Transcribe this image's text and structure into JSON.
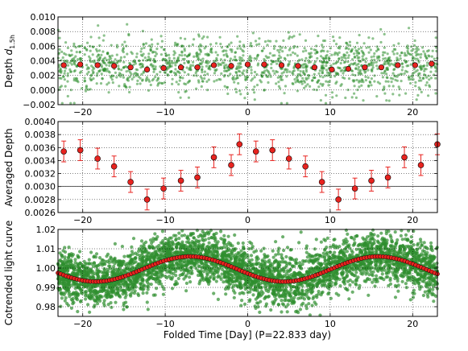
{
  "colors": {
    "scatter": "#2f8f2f",
    "binned": "#e8231f",
    "errorbar": "#e8231f",
    "marker_edge": "#000000",
    "grid": "#000000"
  },
  "chart_data": [
    {
      "type": "scatter",
      "ylabel_prefix": "Depth ",
      "ylabel_math": "d",
      "ylabel_sub": "1.5h",
      "xlim": [
        -23,
        23
      ],
      "ylim": [
        -0.002,
        0.01
      ],
      "yticks": [
        "−0.002",
        "0.000",
        "0.002",
        "0.004",
        "0.006",
        "0.008",
        "0.010"
      ],
      "xticks": [
        "−20",
        "−10",
        "0",
        "10",
        "20"
      ],
      "grid": true,
      "scatter_band": {
        "center": 0.0033,
        "spread": 0.0024,
        "x_range": [
          -23,
          23
        ]
      },
      "binned": {
        "x": [
          -22.3,
          -20.3,
          -18.2,
          -16.2,
          -14.2,
          -12.2,
          -10.2,
          -8.1,
          -6.1,
          -4.1,
          -2.0,
          0.0,
          2.0,
          4.1,
          6.1,
          8.1,
          10.2,
          12.2,
          14.2,
          16.2,
          18.2,
          20.3,
          22.3
        ],
        "y": [
          0.0034,
          0.0035,
          0.0034,
          0.0033,
          0.0031,
          0.0028,
          0.003,
          0.0031,
          0.0031,
          0.0034,
          0.0033,
          0.0035,
          0.0035,
          0.0034,
          0.0033,
          0.0031,
          0.0028,
          0.0029,
          0.0031,
          0.0031,
          0.0034,
          0.0034,
          0.0036
        ]
      }
    },
    {
      "type": "scatter",
      "ylabel": "Averaged Depth",
      "xlim": [
        -23,
        23
      ],
      "ylim": [
        0.0026,
        0.004
      ],
      "yticks": [
        "0.0026",
        "0.0028",
        "0.0030",
        "0.0032",
        "0.0034",
        "0.0036",
        "0.0038",
        "0.0040"
      ],
      "xticks": [
        "−20",
        "−10",
        "0",
        "10",
        "20"
      ],
      "grid": true,
      "hline": 0.003,
      "x": [
        -22.3,
        -20.3,
        -18.2,
        -16.2,
        -14.2,
        -12.2,
        -10.2,
        -8.1,
        -6.1,
        -4.1,
        -2.0,
        -1.0,
        1.0,
        3.0,
        5.0,
        7.0,
        9.0,
        11.0,
        13.0,
        15.0,
        17.0,
        19.0,
        21.0,
        23.0
      ],
      "y": [
        0.00354,
        0.00356,
        0.00343,
        0.00331,
        0.00307,
        0.0028,
        0.00297,
        0.00309,
        0.00314,
        0.00345,
        0.00333,
        0.00365,
        0.00354,
        0.00356,
        0.00343,
        0.00331,
        0.00307,
        0.0028,
        0.00297,
        0.00309,
        0.00314,
        0.00345,
        0.00333,
        0.00365
      ],
      "err": [
        0.00016,
        0.00016,
        0.00016,
        0.00016,
        0.00016,
        0.00016,
        0.00016,
        0.00016,
        0.00016,
        0.00016,
        0.00016,
        0.00016,
        0.00016,
        0.00016,
        0.00016,
        0.00016,
        0.00016,
        0.00016,
        0.00016,
        0.00016,
        0.00016,
        0.00016,
        0.00016,
        0.00016
      ]
    },
    {
      "type": "scatter",
      "ylabel": "Cotrended light curve",
      "xlabel": "Folded Time [Day] (P=22.833 day)",
      "xlim": [
        -23,
        23
      ],
      "ylim": [
        0.975,
        1.02
      ],
      "yticks": [
        "0.98",
        "0.99",
        "1.00",
        "1.01",
        "1.02"
      ],
      "xticks": [
        "−20",
        "−10",
        "0",
        "10",
        "20"
      ],
      "grid": true,
      "period": 22.833,
      "model": {
        "mean": 0.9995,
        "amplitude": 0.0065,
        "phase_peak_x": -7
      }
    }
  ]
}
